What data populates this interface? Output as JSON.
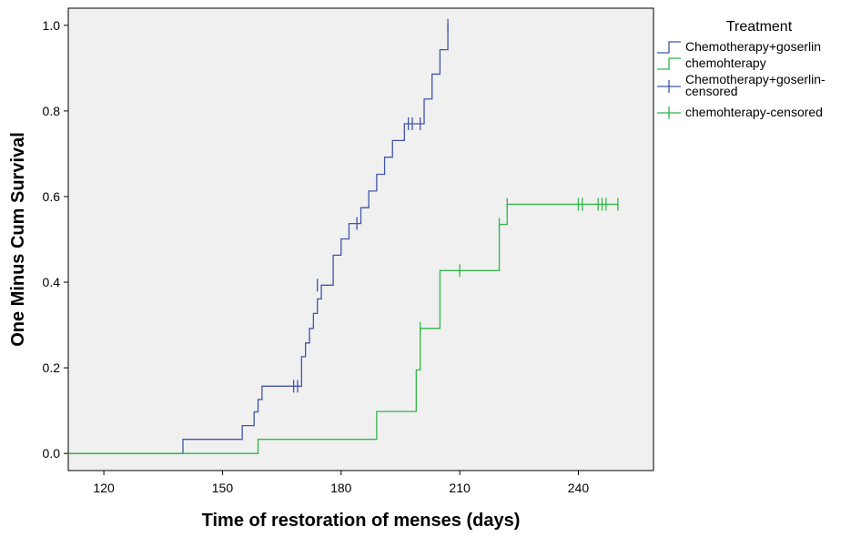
{
  "chart_data": {
    "type": "line",
    "xlabel": "Time of restoration of menses (days)",
    "ylabel": "One Minus Cum Survival",
    "xlim": [
      111,
      259
    ],
    "ylim": [
      -0.04,
      1.04
    ],
    "x_ticks": [
      120,
      150,
      180,
      210,
      240
    ],
    "y_ticks": [
      0.0,
      0.2,
      0.4,
      0.6,
      0.8,
      1.0
    ],
    "x_tick_labels": [
      "120",
      "150",
      "180",
      "210",
      "240"
    ],
    "y_tick_labels": [
      "0.0",
      "0.2",
      "0.4",
      "0.6",
      "0.8",
      "1.0"
    ],
    "background_color": "#f0f0f0",
    "grid": false,
    "legend": {
      "title": "Treatment",
      "position": "top-right",
      "entries": [
        {
          "label_lines": [
            "Chemotherapy+goserlin"
          ],
          "kind": "step",
          "series": 0
        },
        {
          "label_lines": [
            "chemohterapy"
          ],
          "kind": "step",
          "series": 1
        },
        {
          "label_lines": [
            "Chemotherapy+goserlin-",
            "censored"
          ],
          "kind": "censor",
          "series": 0
        },
        {
          "label_lines": [
            "chemohterapy-censored"
          ],
          "kind": "censor",
          "series": 1
        }
      ]
    },
    "series": [
      {
        "name": "Chemotherapy+goserlin",
        "color": "#4055a8",
        "steps": [
          [
            111,
            0.0
          ],
          [
            140,
            0.033
          ],
          [
            155,
            0.065
          ],
          [
            158,
            0.097
          ],
          [
            159,
            0.126
          ],
          [
            160,
            0.157
          ],
          [
            170,
            0.226
          ],
          [
            171,
            0.258
          ],
          [
            172,
            0.292
          ],
          [
            173,
            0.327
          ],
          [
            174,
            0.361
          ],
          [
            175,
            0.393
          ],
          [
            178,
            0.463
          ],
          [
            180,
            0.501
          ],
          [
            182,
            0.537
          ],
          [
            185,
            0.574
          ],
          [
            187,
            0.613
          ],
          [
            189,
            0.652
          ],
          [
            191,
            0.692
          ],
          [
            193,
            0.731
          ],
          [
            196,
            0.77
          ],
          [
            201,
            0.828
          ],
          [
            203,
            0.886
          ],
          [
            205,
            0.943
          ],
          [
            207,
            1.0
          ]
        ],
        "end_x": 207,
        "censored": [
          [
            168,
            0.157
          ],
          [
            169,
            0.157
          ],
          [
            174,
            0.393
          ],
          [
            184,
            0.537
          ],
          [
            197,
            0.77
          ],
          [
            198,
            0.77
          ],
          [
            200,
            0.77
          ],
          [
            207,
            1.0
          ]
        ]
      },
      {
        "name": "chemohterapy",
        "color": "#33b54a",
        "steps": [
          [
            111,
            0.0
          ],
          [
            159,
            0.033
          ],
          [
            189,
            0.098
          ],
          [
            199,
            0.195
          ],
          [
            200,
            0.292
          ],
          [
            205,
            0.427
          ],
          [
            220,
            0.535
          ],
          [
            222,
            0.582
          ]
        ],
        "end_x": 250,
        "censored": [
          [
            200,
            0.292
          ],
          [
            210,
            0.427
          ],
          [
            220,
            0.535
          ],
          [
            222,
            0.582
          ],
          [
            240,
            0.582
          ],
          [
            241,
            0.582
          ],
          [
            245,
            0.582
          ],
          [
            246,
            0.582
          ],
          [
            247,
            0.582
          ],
          [
            250,
            0.582
          ]
        ]
      }
    ]
  }
}
